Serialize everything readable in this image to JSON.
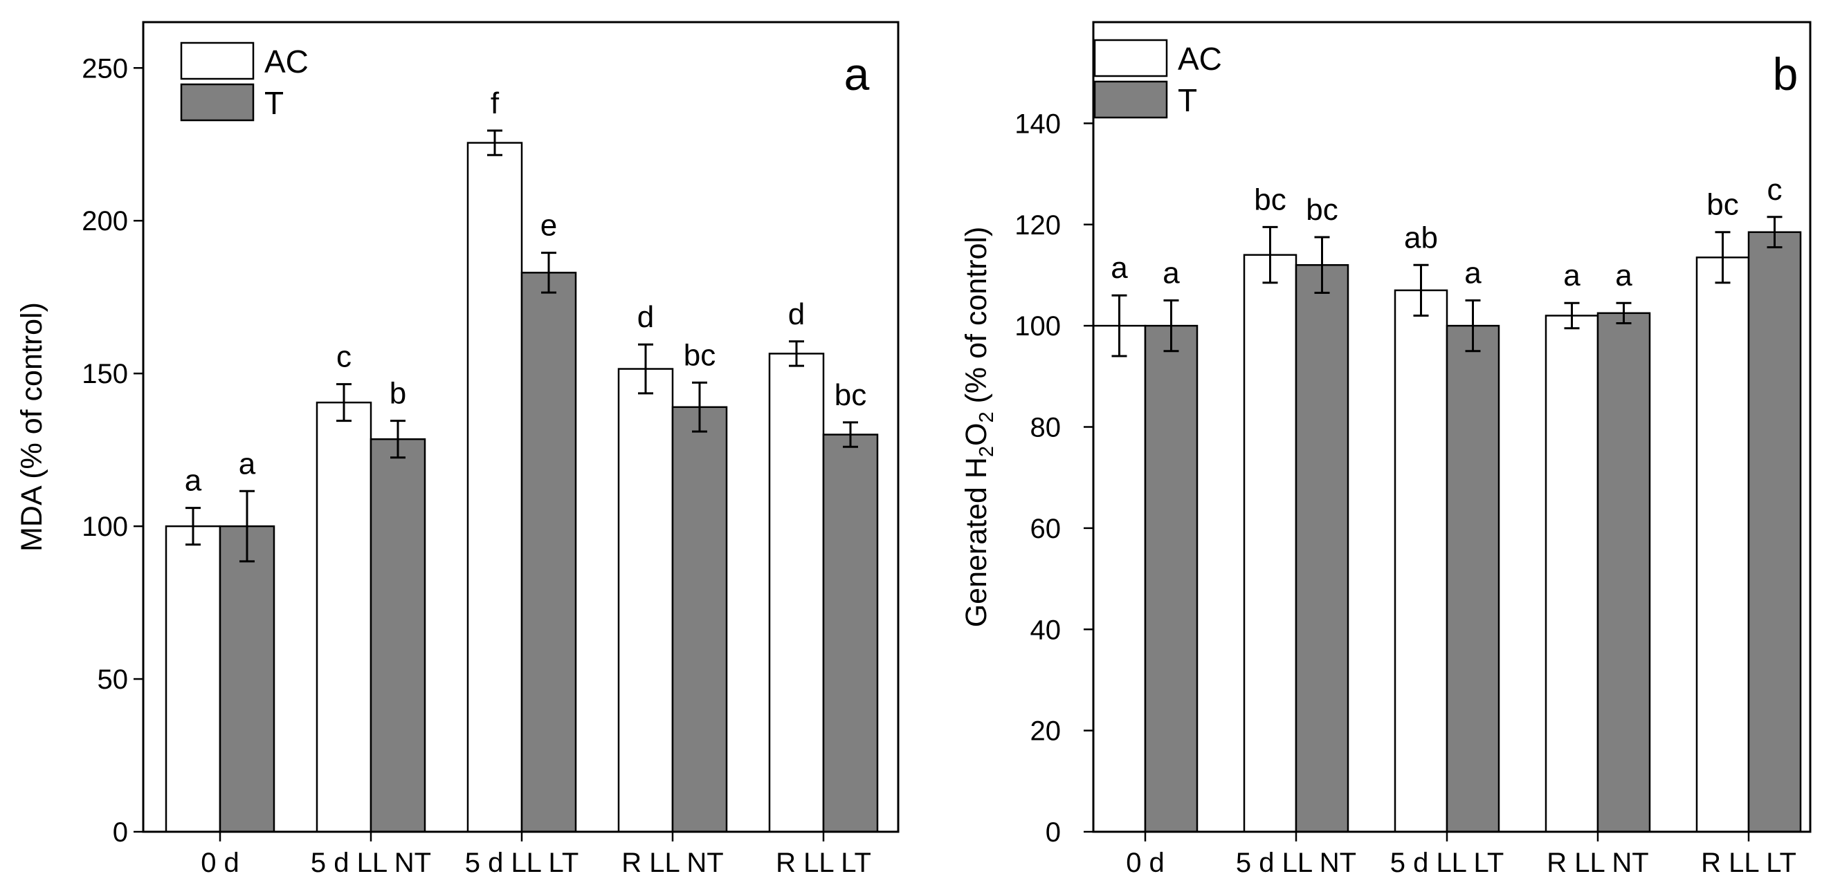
{
  "chart_data": [
    {
      "type": "bar",
      "panel": "a",
      "ylabel": "MDA (% of control)",
      "ylim": [
        0,
        265
      ],
      "yticks": [
        0,
        50,
        100,
        150,
        200,
        250
      ],
      "categories": [
        "0 d",
        "5 d LL NT",
        "5 d LL LT",
        "R LL NT",
        "R LL LT"
      ],
      "legend": [
        "AC",
        "T"
      ],
      "legend_position": "top-left",
      "colors": {
        "AC": "#ffffff",
        "T": "#808080"
      },
      "series": [
        {
          "name": "AC",
          "values": [
            100,
            140.5,
            225.5,
            151.5,
            156.5
          ],
          "errors": [
            6,
            6,
            4,
            8,
            4
          ],
          "labels": [
            "a",
            "c",
            "f",
            "d",
            "d"
          ]
        },
        {
          "name": "T",
          "values": [
            100,
            128.5,
            183,
            139,
            130
          ],
          "errors": [
            11.5,
            6,
            6.5,
            8,
            4
          ],
          "labels": [
            "a",
            "b",
            "e",
            "bc",
            "bc"
          ]
        }
      ]
    },
    {
      "type": "bar",
      "panel": "b",
      "ylabel_main": "Generated H",
      "ylabel_sub1": "2",
      "ylabel_mid": "O",
      "ylabel_sub2": "2",
      "ylabel_end": " (% of control)",
      "ylim": [
        0,
        160
      ],
      "yticks": [
        0,
        20,
        40,
        60,
        80,
        100,
        120,
        140
      ],
      "categories": [
        "0 d",
        "5 d LL NT",
        "5 d LL LT",
        "R LL NT",
        "R LL LT"
      ],
      "legend": [
        "AC",
        "T"
      ],
      "legend_position": "top-left",
      "colors": {
        "AC": "#ffffff",
        "T": "#808080"
      },
      "series": [
        {
          "name": "AC",
          "values": [
            100,
            114,
            107,
            102,
            113.5
          ],
          "errors": [
            6,
            5.5,
            5,
            2.5,
            5
          ],
          "labels": [
            "a",
            "bc",
            "ab",
            "a",
            "bc"
          ]
        },
        {
          "name": "T",
          "values": [
            100,
            112,
            100,
            102.5,
            118.5
          ],
          "errors": [
            5,
            5.5,
            5,
            2,
            3
          ],
          "labels": [
            "a",
            "bc",
            "a",
            "a",
            "c"
          ]
        }
      ]
    }
  ]
}
